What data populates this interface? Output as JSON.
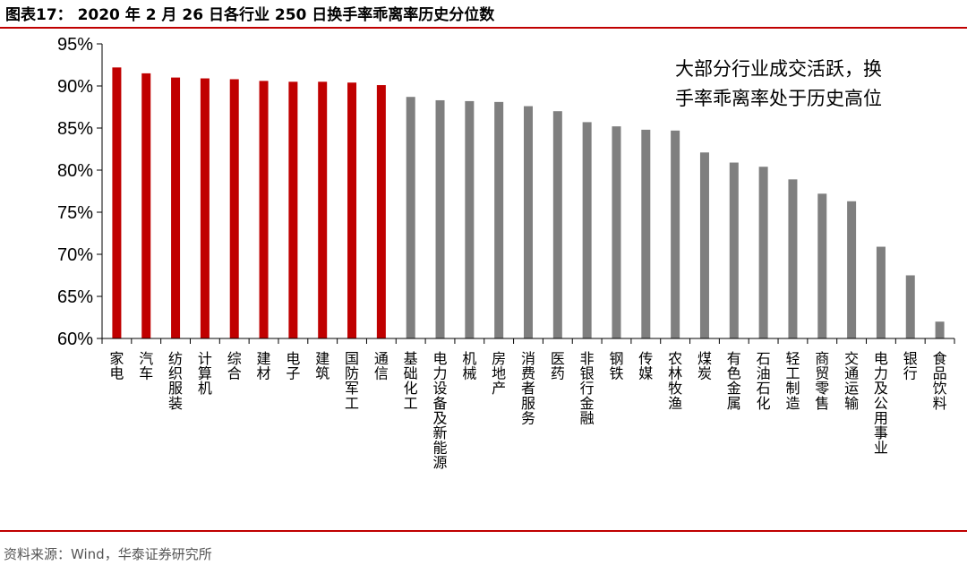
{
  "title": "图表17： 2020 年 2 月 26 日各行业 250 日换手率乖离率历史分位数",
  "source": "资料来源：Wind，华泰证券研究所",
  "annotation": [
    "大部分行业成交活跃，换",
    "手率乖离率处于历史高位"
  ],
  "colors": {
    "highlight": "#c00000",
    "normal": "#7f7f7f",
    "accent": "#c00000"
  },
  "chart_data": {
    "type": "bar",
    "ylim": [
      60,
      95
    ],
    "yticks": [
      60,
      65,
      70,
      75,
      80,
      85,
      90,
      95
    ],
    "ytick_labels": [
      "60%",
      "65%",
      "70%",
      "75%",
      "80%",
      "85%",
      "90%",
      "95%"
    ],
    "categories": [
      "家电",
      "汽车",
      "纺织服装",
      "计算机",
      "综合",
      "建材",
      "电子",
      "建筑",
      "国防军工",
      "通信",
      "基础化工",
      "电力设备及新能源",
      "机械",
      "房地产",
      "消费者服务",
      "医药",
      "非银行金融",
      "钢铁",
      "传媒",
      "农林牧渔",
      "煤炭",
      "有色金属",
      "石油石化",
      "轻工制造",
      "商贸零售",
      "交通运输",
      "电力及公用事业",
      "银行",
      "食品饮料"
    ],
    "values": [
      92.2,
      91.5,
      91.0,
      90.9,
      90.8,
      90.6,
      90.5,
      90.5,
      90.4,
      90.1,
      88.7,
      88.3,
      88.2,
      88.1,
      87.6,
      87.0,
      85.7,
      85.2,
      84.8,
      84.7,
      82.1,
      80.9,
      80.4,
      78.9,
      77.2,
      76.3,
      70.9,
      67.5,
      62.0
    ],
    "highlight_count": 10,
    "grid": false,
    "legend": "none"
  }
}
